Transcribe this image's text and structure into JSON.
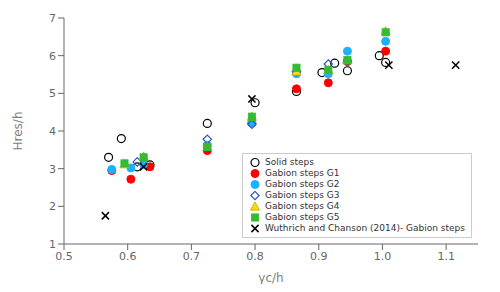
{
  "chart_data": {
    "type": "scatter",
    "xlabel": "yc/h",
    "ylabel": "Hres/h",
    "xlim": [
      0.5,
      1.15
    ],
    "ylim": [
      1.0,
      7.0
    ],
    "xticks": [
      0.5,
      0.6,
      0.7,
      0.8,
      0.9,
      {
        "value": 1.0,
        "label": "1.0"
      },
      1.1
    ],
    "yticks": [
      1,
      2,
      3,
      4,
      5,
      6,
      7
    ],
    "grid": false,
    "legend": "lower right",
    "series": [
      {
        "name": "Solid steps",
        "color": "#000000",
        "marker": "circle-open",
        "x": [
          0.57,
          0.59,
          0.615,
          0.635,
          0.725,
          0.8,
          0.865,
          0.905,
          0.925,
          0.945,
          0.995,
          1.005
        ],
        "values": [
          3.3,
          3.8,
          3.05,
          3.1,
          4.2,
          4.75,
          5.05,
          5.55,
          5.8,
          5.6,
          6.0,
          5.82
        ]
      },
      {
        "name": "Gabion steps G1",
        "color": "#ff0000",
        "marker": "circle",
        "x": [
          0.575,
          0.605,
          0.635,
          0.725,
          0.795,
          0.865,
          0.915,
          0.945,
          1.005
        ],
        "values": [
          2.95,
          2.72,
          3.05,
          3.48,
          4.22,
          5.12,
          5.28,
          5.85,
          6.12
        ]
      },
      {
        "name": "Gabion steps G2",
        "color": "#1ab2ff",
        "marker": "circle",
        "x": [
          0.575,
          0.605,
          0.625,
          0.725,
          0.795,
          0.865,
          0.915,
          0.945,
          1.005
        ],
        "values": [
          2.98,
          3.02,
          3.12,
          3.62,
          4.22,
          5.52,
          5.52,
          6.12,
          6.38
        ]
      },
      {
        "name": "Gabion steps G3",
        "color": "#3355bb",
        "marker": "diamond-open",
        "x": [
          0.615,
          0.725,
          0.795,
          0.865,
          0.915,
          0.945
        ],
        "values": [
          3.18,
          3.78,
          4.18,
          5.58,
          5.78,
          5.82
        ]
      },
      {
        "name": "Gabion steps G4",
        "color": "#ffdd00",
        "marker": "triangle",
        "x": [
          0.595,
          0.625,
          0.725,
          0.795,
          0.865,
          0.915,
          0.945,
          1.005
        ],
        "values": [
          3.12,
          3.32,
          3.58,
          4.38,
          5.58,
          5.62,
          5.88,
          6.65
        ]
      },
      {
        "name": "Gabion steps G5",
        "color": "#33bb33",
        "marker": "square",
        "x": [
          0.595,
          0.625,
          0.725,
          0.795,
          0.865,
          0.915,
          0.945,
          1.005
        ],
        "values": [
          3.14,
          3.3,
          3.58,
          4.38,
          5.68,
          5.62,
          5.88,
          6.62
        ]
      },
      {
        "name": "Wuthrich and Chanson (2014)- Gabion steps",
        "color": "#000000",
        "marker": "x",
        "x": [
          0.565,
          0.625,
          0.795,
          1.01,
          1.115
        ],
        "values": [
          1.75,
          3.05,
          4.85,
          5.75,
          5.75
        ]
      }
    ]
  }
}
